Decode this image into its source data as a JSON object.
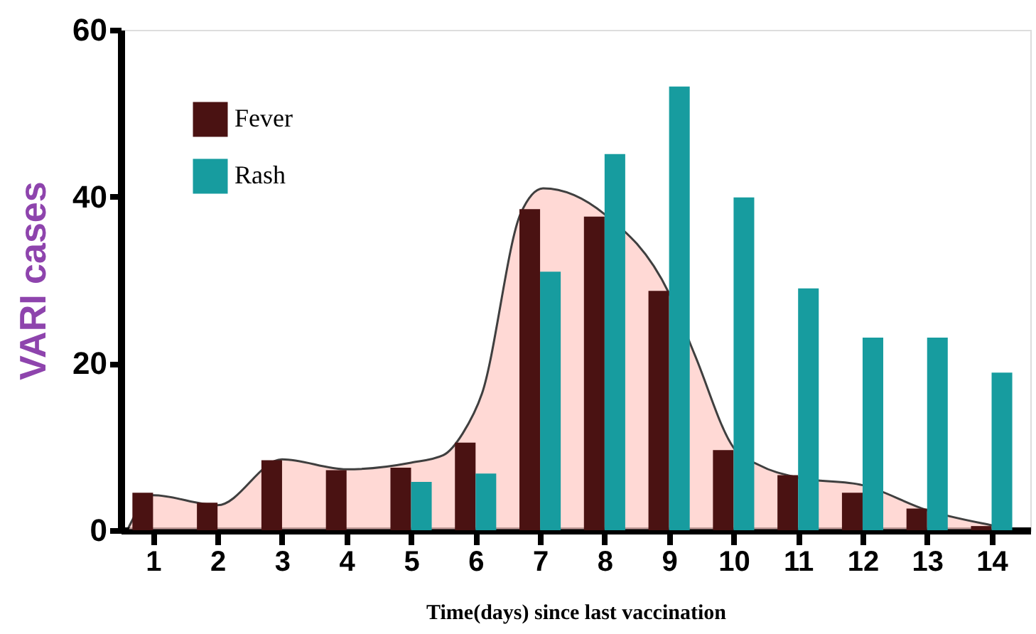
{
  "chart_data": {
    "type": "bar",
    "xlabel": "Time(days) since last vaccination",
    "ylabel": "VARI cases",
    "x": [
      1,
      2,
      3,
      4,
      5,
      6,
      7,
      8,
      9,
      10,
      11,
      12,
      13,
      14
    ],
    "xlim": [
      0.5,
      14.6
    ],
    "xticks": [
      1,
      2,
      3,
      4,
      5,
      6,
      7,
      8,
      9,
      10,
      11,
      12,
      13,
      14
    ],
    "ylim": [
      0,
      60
    ],
    "yticks": [
      0,
      20,
      40,
      60
    ],
    "grid": false,
    "legend": "top left",
    "series": [
      {
        "name": "Fever",
        "color": "#4a1212",
        "values": [
          4.5,
          3.3,
          8.4,
          7.2,
          7.5,
          10.5,
          38.5,
          37.6,
          28.7,
          9.6,
          6.6,
          4.5,
          2.6,
          0.5
        ]
      },
      {
        "name": "Rash",
        "color": "#179c9f",
        "values": [
          null,
          null,
          null,
          null,
          5.8,
          6.8,
          31,
          45.1,
          53.2,
          39.9,
          29,
          23.1,
          23.1,
          18.9
        ]
      },
      {
        "type": "area",
        "color": "#ffcdc8",
        "x": [
          0.6,
          1,
          2,
          3,
          4,
          5,
          5.5,
          5.8,
          6.1,
          6.7,
          7.05,
          8,
          9,
          9.4,
          10,
          10.4,
          11,
          12,
          13,
          14,
          14.4
        ],
        "values": [
          0,
          4.2,
          3.0,
          8.5,
          7.3,
          8.1,
          9,
          11.6,
          16.4,
          38,
          41,
          37.9,
          28.4,
          21,
          9.9,
          7.8,
          6.3,
          5.4,
          2.4,
          0.6,
          0
        ]
      }
    ]
  }
}
